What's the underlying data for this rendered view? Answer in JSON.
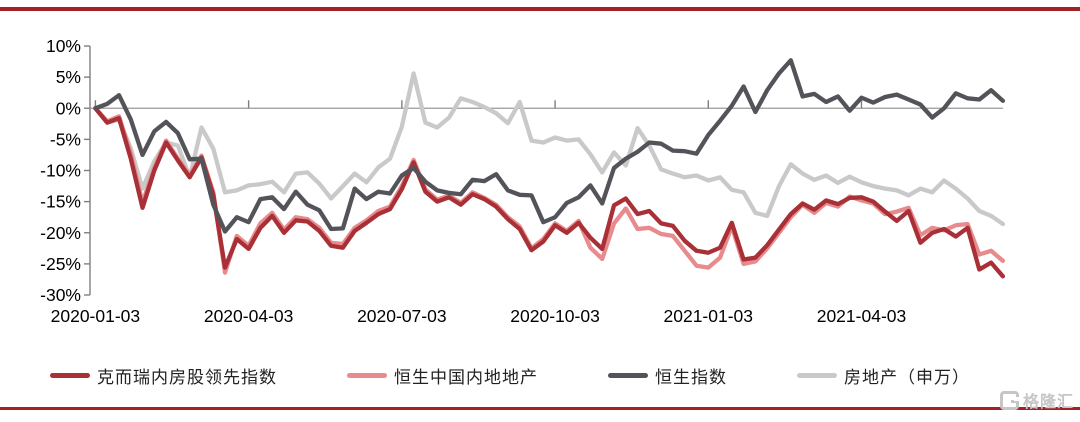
{
  "watermark": {
    "text": "格隆汇",
    "icon": "gelonghui-g-logo"
  },
  "page": {
    "accent_rule_color": "#a22226",
    "background": "#ffffff"
  },
  "chart_data": {
    "type": "line",
    "title": "",
    "xlabel": "",
    "ylabel": "",
    "ylim": [
      -30,
      10
    ],
    "ytick_step": 5,
    "ytick_labels": [
      "10%",
      "5%",
      "0%",
      "-5%",
      "-10%",
      "-15%",
      "-20%",
      "-25%",
      "-30%"
    ],
    "xtick_labels": [
      "2020-01-03",
      "2020-04-03",
      "2020-07-03",
      "2020-10-03",
      "2021-01-03",
      "2021-04-03"
    ],
    "x_tick_weeks": [
      0,
      13,
      26,
      39,
      52,
      65
    ],
    "grid": "zero-line-only",
    "legend_position": "bottom",
    "axis_color": "#7f7f7f",
    "zero_line_color": "#999999",
    "x": [
      "2020-01-03",
      "2020-01-10",
      "2020-01-17",
      "2020-01-24",
      "2020-01-31",
      "2020-02-07",
      "2020-02-14",
      "2020-02-21",
      "2020-02-28",
      "2020-03-06",
      "2020-03-13",
      "2020-03-20",
      "2020-03-27",
      "2020-04-03",
      "2020-04-10",
      "2020-04-17",
      "2020-04-24",
      "2020-05-01",
      "2020-05-08",
      "2020-05-15",
      "2020-05-22",
      "2020-05-29",
      "2020-06-05",
      "2020-06-12",
      "2020-06-19",
      "2020-06-26",
      "2020-07-03",
      "2020-07-10",
      "2020-07-17",
      "2020-07-24",
      "2020-07-31",
      "2020-08-07",
      "2020-08-14",
      "2020-08-21",
      "2020-08-28",
      "2020-09-04",
      "2020-09-11",
      "2020-09-18",
      "2020-09-25",
      "2020-10-02",
      "2020-10-09",
      "2020-10-16",
      "2020-10-23",
      "2020-10-30",
      "2020-11-06",
      "2020-11-13",
      "2020-11-20",
      "2020-11-27",
      "2020-12-04",
      "2020-12-11",
      "2020-12-18",
      "2020-12-25",
      "2021-01-01",
      "2021-01-08",
      "2021-01-15",
      "2021-01-22",
      "2021-01-29",
      "2021-02-05",
      "2021-02-12",
      "2021-02-19",
      "2021-02-26",
      "2021-03-05",
      "2021-03-12",
      "2021-03-19",
      "2021-03-26",
      "2021-04-02",
      "2021-04-09",
      "2021-04-16",
      "2021-04-23",
      "2021-04-30",
      "2021-05-07",
      "2021-05-14",
      "2021-05-21",
      "2021-05-28",
      "2021-06-04",
      "2021-06-11",
      "2021-06-18",
      "2021-06-25"
    ],
    "series": [
      {
        "name": "克而瑞内房股领先指数",
        "color": "#a93036",
        "values": [
          0,
          -2.3,
          -1.6,
          -8.1,
          -16.0,
          -10.0,
          -5.5,
          -8.4,
          -11.1,
          -7.9,
          -13.9,
          -25.6,
          -21.0,
          -22.6,
          -19.2,
          -17.3,
          -20.0,
          -18.0,
          -18.2,
          -19.7,
          -22.1,
          -22.4,
          -19.7,
          -18.4,
          -17.0,
          -16.2,
          -13.0,
          -8.7,
          -13.4,
          -15.0,
          -14.3,
          -15.5,
          -13.8,
          -14.6,
          -15.8,
          -17.8,
          -19.4,
          -22.8,
          -21.4,
          -18.8,
          -20.0,
          -18.4,
          -20.8,
          -22.6,
          -15.6,
          -14.5,
          -17.0,
          -16.5,
          -18.5,
          -18.9,
          -21.3,
          -22.9,
          -23.2,
          -22.4,
          -18.4,
          -24.3,
          -24.0,
          -22.0,
          -19.5,
          -17.0,
          -15.3,
          -16.3,
          -14.8,
          -15.4,
          -14.4,
          -14.3,
          -15.0,
          -16.6,
          -18.1,
          -16.5,
          -21.6,
          -20.0,
          -19.4,
          -20.6,
          -19.2,
          -25.9,
          -24.8,
          -27.0
        ]
      },
      {
        "name": "恒生中国内地地产",
        "color": "#e88b8e",
        "values": [
          0,
          -2.1,
          -1.3,
          -7.3,
          -15.2,
          -9.5,
          -5.2,
          -8.1,
          -10.8,
          -7.6,
          -13.5,
          -26.4,
          -20.5,
          -22.1,
          -18.5,
          -16.8,
          -19.5,
          -17.5,
          -17.8,
          -19.2,
          -21.6,
          -21.8,
          -19.2,
          -18.0,
          -16.5,
          -15.8,
          -12.5,
          -8.3,
          -13.0,
          -14.7,
          -14.0,
          -15.2,
          -13.5,
          -14.4,
          -15.5,
          -17.5,
          -19.0,
          -22.5,
          -21.0,
          -18.5,
          -19.7,
          -18.1,
          -22.4,
          -24.2,
          -18.5,
          -16.1,
          -19.4,
          -19.2,
          -20.2,
          -20.5,
          -22.9,
          -25.3,
          -25.6,
          -24.0,
          -19.0,
          -25.0,
          -24.6,
          -22.5,
          -20.0,
          -17.5,
          -15.5,
          -16.8,
          -15.2,
          -15.8,
          -14.2,
          -14.8,
          -15.3,
          -17.0,
          -16.6,
          -16.0,
          -20.4,
          -19.2,
          -19.6,
          -18.8,
          -18.6,
          -23.5,
          -22.9,
          -24.5
        ]
      },
      {
        "name": "恒生指数",
        "color": "#53545a",
        "values": [
          0,
          0.7,
          2.1,
          -1.8,
          -7.5,
          -3.7,
          -2.2,
          -4.0,
          -8.2,
          -8.1,
          -15.5,
          -19.8,
          -17.5,
          -18.3,
          -14.6,
          -14.3,
          -16.2,
          -13.4,
          -15.5,
          -16.4,
          -19.4,
          -19.3,
          -12.9,
          -14.6,
          -13.4,
          -13.7,
          -10.8,
          -9.6,
          -11.8,
          -13.2,
          -13.6,
          -13.8,
          -11.5,
          -11.7,
          -10.6,
          -13.2,
          -13.9,
          -14.0,
          -18.3,
          -17.5,
          -15.2,
          -14.3,
          -12.4,
          -15.3,
          -9.6,
          -8.1,
          -7.0,
          -5.5,
          -5.7,
          -6.8,
          -6.9,
          -7.3,
          -4.3,
          -2.0,
          0.4,
          3.5,
          -0.6,
          2.9,
          5.6,
          7.7,
          1.9,
          2.3,
          1.0,
          1.9,
          -0.4,
          1.7,
          0.9,
          1.8,
          2.2,
          1.4,
          0.6,
          -1.5,
          0.0,
          2.4,
          1.6,
          1.4,
          2.9,
          1.2
        ]
      },
      {
        "name": "房地产（申万）",
        "color": "#c9c9c9",
        "values": [
          0,
          -2.3,
          -1.8,
          -6.5,
          -12.9,
          -8.5,
          -5.5,
          -6.0,
          -11.1,
          -3.1,
          -6.5,
          -13.5,
          -13.2,
          -12.4,
          -12.2,
          -11.8,
          -13.5,
          -10.5,
          -10.3,
          -12.1,
          -14.5,
          -12.5,
          -10.5,
          -11.9,
          -9.5,
          -8.1,
          -3.0,
          5.6,
          -2.3,
          -3.1,
          -1.5,
          1.6,
          1.0,
          0.2,
          -0.8,
          -2.4,
          1.0,
          -5.2,
          -5.5,
          -4.7,
          -5.2,
          -5.0,
          -7.4,
          -10.3,
          -7.1,
          -9.2,
          -3.2,
          -6.0,
          -9.8,
          -10.5,
          -11.1,
          -10.8,
          -11.6,
          -11.1,
          -13.1,
          -13.5,
          -16.8,
          -17.3,
          -12.5,
          -9.0,
          -10.5,
          -11.5,
          -10.8,
          -12.0,
          -11.0,
          -11.9,
          -12.5,
          -12.9,
          -13.2,
          -14.0,
          -12.9,
          -13.5,
          -11.6,
          -12.9,
          -14.5,
          -16.5,
          -17.3,
          -18.6
        ]
      }
    ]
  }
}
